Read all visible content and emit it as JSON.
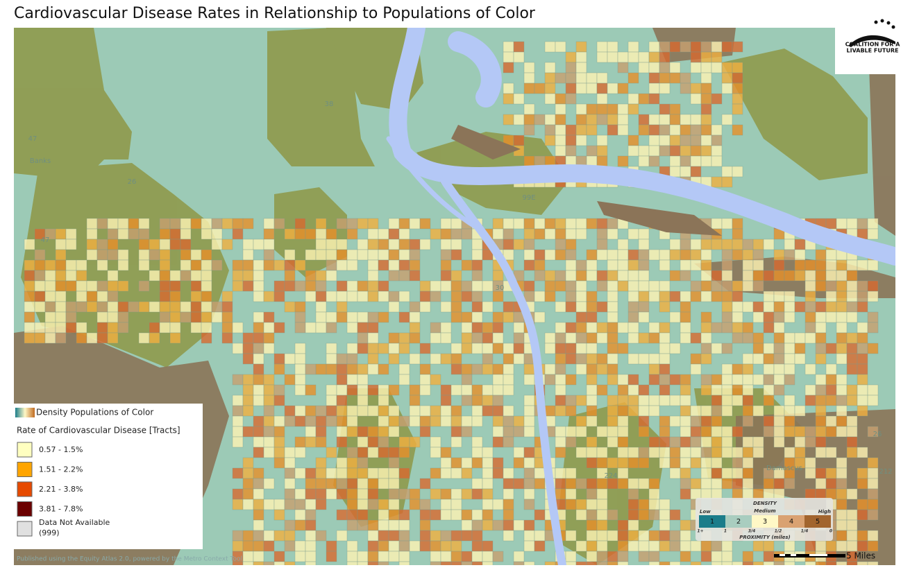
{
  "title": "Cardiovascular Disease Rates in Relationship to Populations of Color",
  "logo": {
    "line1": "COALITION FOR A",
    "line2": "LIVABLE FUTURE"
  },
  "legend": {
    "density_label": "Density Populations of Color",
    "heading": "Rate of Cardiovascular Disease [Tracts]",
    "items": [
      {
        "label": "0.57 - 1.5%",
        "color": "#ffffc0"
      },
      {
        "label": "1.51 - 2.2%",
        "color": "#ffa500"
      },
      {
        "label": "2.21 - 3.8%",
        "color": "#e64a00"
      },
      {
        "label": "3.81 - 7.8%",
        "color": "#6b0000"
      },
      {
        "label": "Data Not Available",
        "sublabel": "(999)",
        "color": "#e0e0e0"
      }
    ]
  },
  "density_legend": {
    "title": "DENSITY",
    "low": "Low",
    "medium": "Medium",
    "high": "High",
    "classes": [
      {
        "label": "1",
        "color": "#1b7d8a"
      },
      {
        "label": "2",
        "color": "#a9cdbf"
      },
      {
        "label": "3",
        "color": "#fff8c6"
      },
      {
        "label": "4",
        "color": "#d9a272"
      },
      {
        "label": "5",
        "color": "#a2652e"
      }
    ],
    "proximity_ticks": [
      "1+",
      "1",
      "3/4",
      "1/2",
      "1/4",
      "0"
    ],
    "proximity_label": "PROXIMITY (miles)"
  },
  "map_labels": [
    "Banks",
    "47",
    "26",
    "38",
    "99E",
    "47",
    "30",
    "224",
    "212",
    "26",
    "Damascus"
  ],
  "credit": "Published using the Equity Atlas 2.0, powered by the Metro Context Tool",
  "scale": "5 Miles"
}
